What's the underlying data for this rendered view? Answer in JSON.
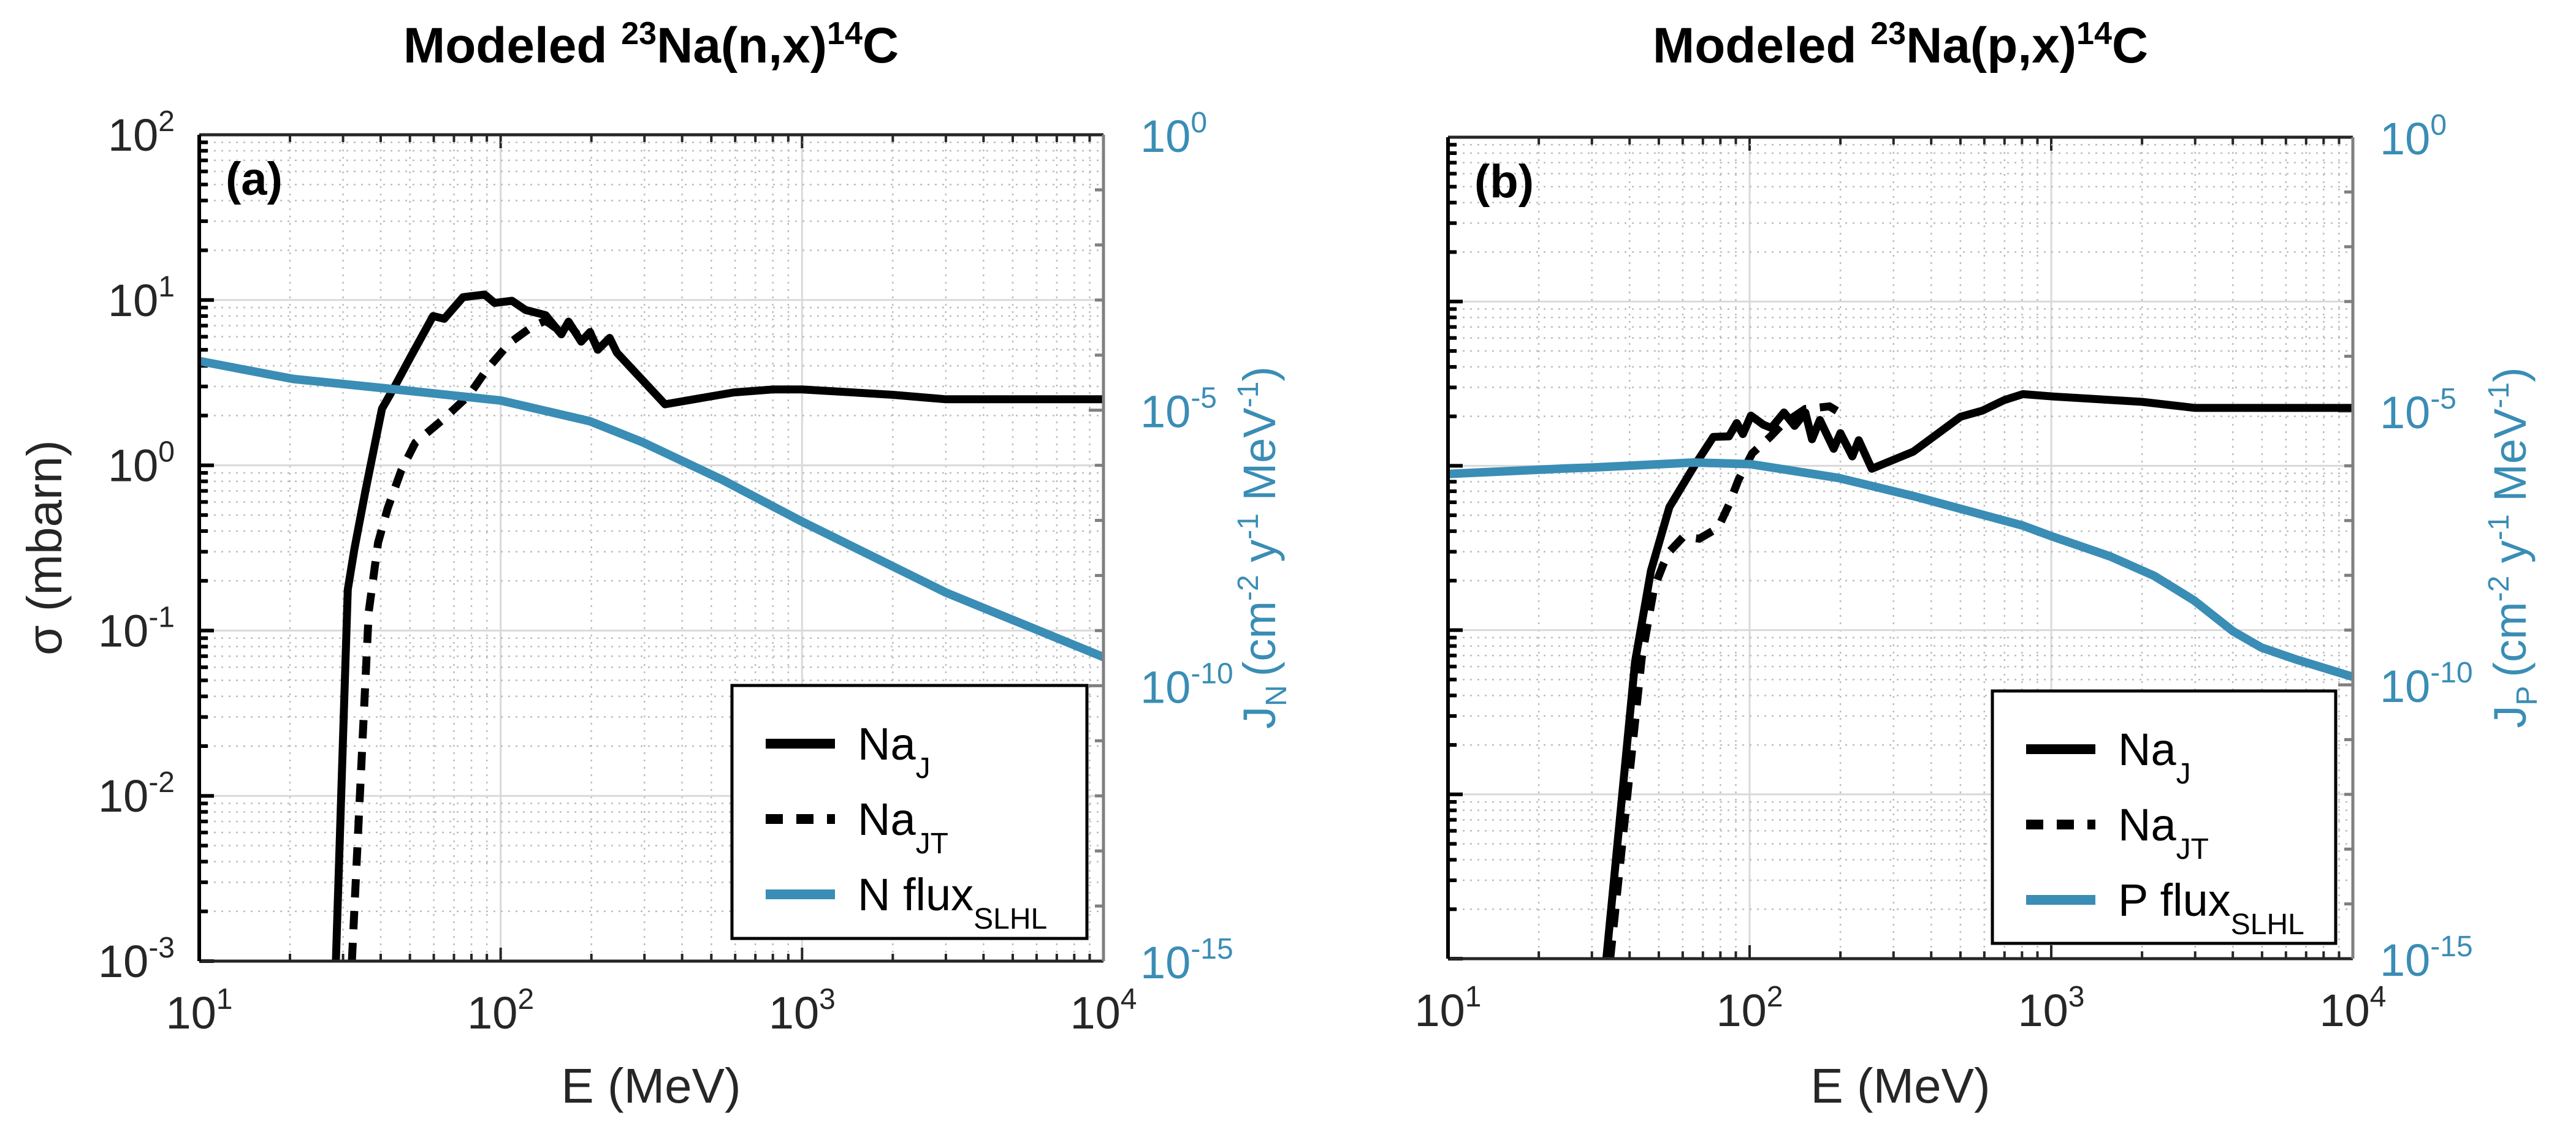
{
  "figure": {
    "panels": [
      {
        "id": "a",
        "tag": "(a)",
        "title": {
          "prefix": "Modeled ",
          "mass": "23",
          "reaction": "Na(n,x)",
          "product_mass": "14",
          "product": "C"
        },
        "xlabel": "E (MeV)",
        "ylabel": "σ (mbarn)",
        "ylabel_right": {
          "symbol": "J",
          "sub": "N",
          "units": "(cm",
          "u1": "-2",
          "u2": " y",
          "u3": "-1",
          "u4": " MeV",
          "u5": "-1",
          "u6": ")"
        },
        "show_left_ticklabels": true
      },
      {
        "id": "b",
        "tag": "(b)",
        "title": {
          "prefix": "Modeled ",
          "mass": "23",
          "reaction": "Na(p,x)",
          "product_mass": "14",
          "product": "C"
        },
        "xlabel": "E (MeV)",
        "ylabel": "",
        "ylabel_right": {
          "symbol": "J",
          "sub": "P",
          "units": "(cm",
          "u1": "-2",
          "u2": " y",
          "u3": "-1",
          "u4": " MeV",
          "u5": "-1",
          "u6": ")"
        },
        "show_left_ticklabels": false
      }
    ],
    "colors": {
      "cross_section": "#000000",
      "flux": "#3a8db5",
      "right_axis_text": "#3a8db5",
      "grid": "#d9d9d9"
    }
  },
  "chart_data": [
    {
      "type": "line",
      "title": "Modeled 23Na(n,x)14C",
      "panel_tag": "(a)",
      "xlabel": "E (MeV)",
      "ylabel": "σ (mbarn)",
      "ylabel_right": "J_N (cm^-2 y^-1 MeV^-1)",
      "xscale": "log",
      "yscale": "log",
      "yscale_right": "log",
      "xlim": [
        10,
        10000
      ],
      "ylim": [
        0.001,
        100
      ],
      "ylim_right": [
        1e-15,
        1
      ],
      "x_ticks": [
        {
          "base": "10",
          "exp": "1",
          "value": 10
        },
        {
          "base": "10",
          "exp": "2",
          "value": 100
        },
        {
          "base": "10",
          "exp": "3",
          "value": 1000
        },
        {
          "base": "10",
          "exp": "4",
          "value": 10000
        }
      ],
      "y_ticks": [
        {
          "base": "10",
          "exp": "2",
          "value": 100
        },
        {
          "base": "10",
          "exp": "1",
          "value": 10
        },
        {
          "base": "10",
          "exp": "0",
          "value": 1
        },
        {
          "base": "10",
          "exp": "-1",
          "value": 0.1
        },
        {
          "base": "10",
          "exp": "-2",
          "value": 0.01
        },
        {
          "base": "10",
          "exp": "-3",
          "value": 0.001
        }
      ],
      "y_ticks_right": [
        {
          "base": "10",
          "exp": "0",
          "value": 1
        },
        {
          "base": "10",
          "exp": "-5",
          "value": 1e-05
        },
        {
          "base": "10",
          "exp": "-10",
          "value": 1e-10
        },
        {
          "base": "10",
          "exp": "-15",
          "value": 1e-15
        }
      ],
      "grid": true,
      "legend_position": "bottom-right",
      "series": [
        {
          "name": "Na_J",
          "label": "Na",
          "label_sub": "J",
          "axis": "left",
          "style": "solid",
          "color": "#000000",
          "x": [
            28.4,
            31.1,
            32.7,
            35.6,
            40.4,
            44.5,
            50.5,
            59.7,
            65,
            75,
            88.5,
            95.5,
            109,
            121,
            141,
            159,
            168,
            185,
            198,
            210,
            230,
            243,
            351,
            594,
            805,
            1000,
            2000,
            3000,
            10000
          ],
          "y": [
            0.001,
            0.177,
            0.31,
            0.7,
            2.2,
            3.0,
            4.6,
            8.0,
            7.7,
            10.4,
            10.8,
            9.6,
            9.9,
            8.7,
            8.1,
            6.2,
            7.4,
            5.6,
            6.4,
            5.0,
            5.9,
            4.8,
            2.34,
            2.76,
            2.88,
            2.88,
            2.67,
            2.51,
            2.51
          ]
        },
        {
          "name": "Na_JT",
          "label": "Na",
          "label_sub": "JT",
          "axis": "left",
          "style": "dashed",
          "color": "#000000",
          "x": [
            32.1,
            36.5,
            39.2,
            42.2,
            46.8,
            52.1,
            63.4,
            78.3,
            89.8,
            107,
            127,
            141,
            159,
            168,
            185,
            198,
            210,
            230
          ],
          "y": [
            0.001,
            0.13,
            0.34,
            0.55,
            0.93,
            1.37,
            1.85,
            2.64,
            3.78,
            5.5,
            6.9,
            7.5,
            6.4,
            7.2,
            5.8,
            6.3,
            5.1,
            5.6
          ]
        },
        {
          "name": "N flux_SLHL",
          "label": "N flux",
          "label_sub": "SLHL",
          "axis": "right",
          "style": "solid",
          "color": "#3a8db5",
          "x": [
            10,
            20.5,
            44.5,
            100,
            198,
            297,
            546,
            1000,
            3000,
            10000
          ],
          "y": [
            7.8e-05,
            3.7e-05,
            2.4e-05,
            1.5e-05,
            6.3e-06,
            2.6e-06,
            5.4e-07,
            9.5e-08,
            4.9e-09,
            3.3e-10
          ]
        }
      ]
    },
    {
      "type": "line",
      "title": "Modeled 23Na(p,x)14C",
      "panel_tag": "(b)",
      "xlabel": "E (MeV)",
      "ylabel": "",
      "ylabel_right": "J_P (cm^-2 y^-1 MeV^-1)",
      "xscale": "log",
      "yscale": "log",
      "yscale_right": "log",
      "xlim": [
        10,
        10000
      ],
      "ylim": [
        0.001,
        100
      ],
      "ylim_right": [
        1e-15,
        1
      ],
      "x_ticks": [
        {
          "base": "10",
          "exp": "1",
          "value": 10
        },
        {
          "base": "10",
          "exp": "2",
          "value": 100
        },
        {
          "base": "10",
          "exp": "3",
          "value": 1000
        },
        {
          "base": "10",
          "exp": "4",
          "value": 10000
        }
      ],
      "y_ticks": [],
      "y_ticks_right": [
        {
          "base": "10",
          "exp": "0",
          "value": 1
        },
        {
          "base": "10",
          "exp": "-5",
          "value": 1e-05
        },
        {
          "base": "10",
          "exp": "-10",
          "value": 1e-10
        },
        {
          "base": "10",
          "exp": "-15",
          "value": 1e-15
        }
      ],
      "grid": true,
      "legend_position": "bottom-right",
      "series": [
        {
          "name": "Na_J",
          "label": "Na",
          "label_sub": "J",
          "axis": "left",
          "style": "solid",
          "color": "#000000",
          "x": [
            33.5,
            41.7,
            47.1,
            54.2,
            65.6,
            75.8,
            85.4,
            90.6,
            95,
            101,
            111,
            118,
            130,
            141,
            153,
            161,
            171,
            190,
            200,
            219,
            230,
            254,
            349,
            501,
            592,
            698,
            805,
            1018,
            2000,
            3000,
            10000
          ],
          "y": [
            0.001,
            0.064,
            0.23,
            0.56,
            1.0,
            1.5,
            1.51,
            1.82,
            1.56,
            2.02,
            1.78,
            1.7,
            2.11,
            1.75,
            2.11,
            1.45,
            1.9,
            1.27,
            1.58,
            1.14,
            1.43,
            0.96,
            1.22,
            1.99,
            2.17,
            2.51,
            2.73,
            2.64,
            2.45,
            2.25,
            2.25
          ]
        },
        {
          "name": "Na_JT",
          "label": "Na",
          "label_sub": "JT",
          "axis": "left",
          "style": "dashed",
          "color": "#000000",
          "x": [
            34.5,
            43.9,
            48.2,
            51.7,
            54.2,
            60.3,
            68.1,
            78.7,
            85.4,
            91.8,
            102,
            117,
            128,
            153,
            184,
            205
          ],
          "y": [
            0.001,
            0.068,
            0.18,
            0.25,
            0.3,
            0.37,
            0.36,
            0.42,
            0.58,
            0.82,
            1.19,
            1.5,
            1.78,
            2.22,
            2.3,
            2.04
          ]
        },
        {
          "name": "P flux_SLHL",
          "label": "P flux",
          "label_sub": "SLHL",
          "axis": "right",
          "style": "solid",
          "color": "#3a8db5",
          "x": [
            10,
            24.1,
            30,
            65.6,
            101,
            197,
            349,
            805,
            1000,
            1574,
            2193,
            2972,
            4010,
            4977,
            6500,
            10000
          ],
          "y": [
            7.1e-07,
            8.9e-07,
            9.3e-07,
            1.15e-06,
            1.07e-06,
            6e-07,
            2.8e-07,
            8.1e-08,
            5.2e-08,
            2.2e-08,
            9.8e-09,
            3.5e-09,
            9.5e-10,
            4.8e-10,
            2.9e-10,
            1.4e-10
          ]
        }
      ]
    }
  ]
}
